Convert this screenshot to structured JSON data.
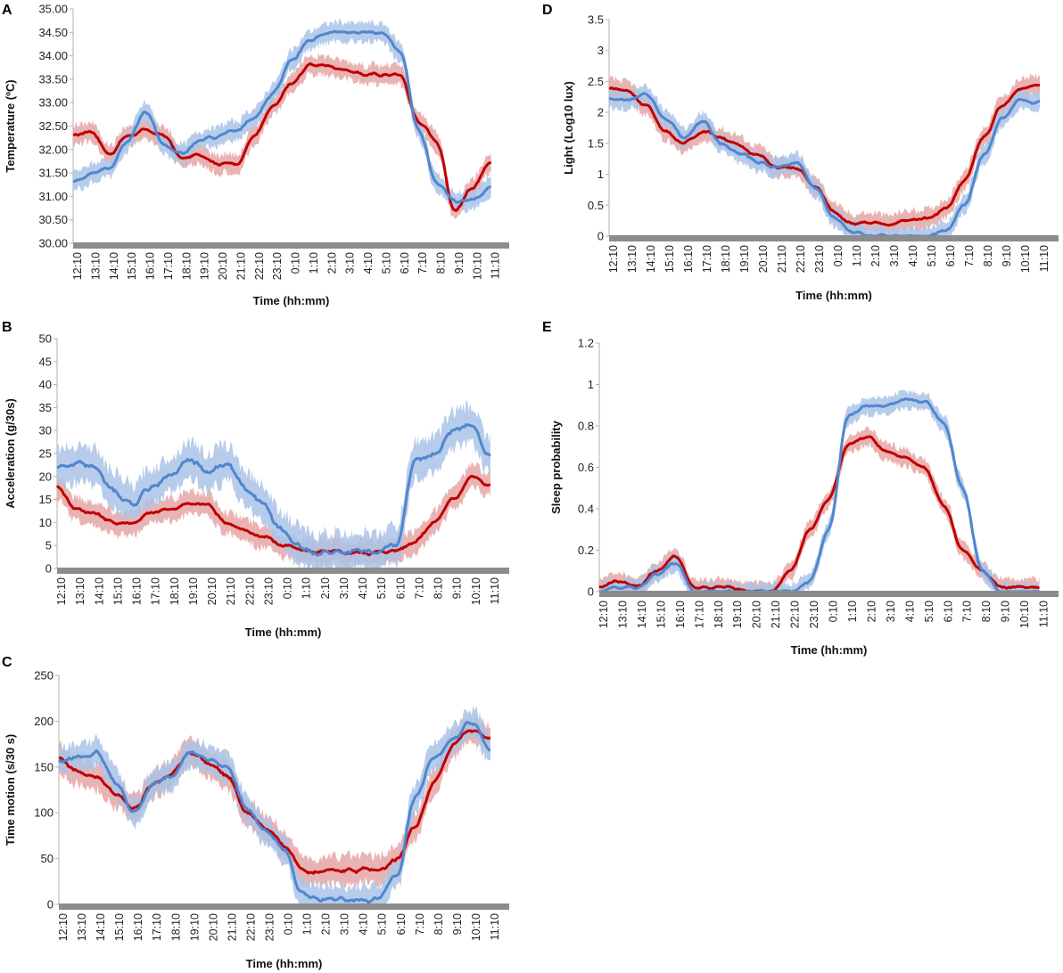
{
  "figure": {
    "colors": {
      "red": "#c00000",
      "red_band": "#e6a6a6",
      "blue": "#4f86cf",
      "blue_band": "#a9c3e6",
      "axis": "#8c8c8c"
    }
  },
  "chart_data": [
    {
      "id": "A",
      "type": "line",
      "panel_label": "A",
      "ylabel": "Temperature (ºC)",
      "xlabel": "Time (hh:mm)",
      "ylim": [
        30.0,
        35.0
      ],
      "yticks": [
        "30.00",
        "30.50",
        "31.00",
        "31.50",
        "32.00",
        "32.50",
        "33.00",
        "33.50",
        "34.00",
        "34.50",
        "35.00"
      ],
      "categories": [
        "12:10",
        "13:10",
        "14:10",
        "15:10",
        "16:10",
        "17:10",
        "18:10",
        "19:10",
        "20:10",
        "21:10",
        "22:10",
        "23:10",
        "0:10",
        "1:10",
        "2:10",
        "3:10",
        "4:10",
        "5:10",
        "6:10",
        "7:10",
        "8:10",
        "9:10",
        "10:10",
        "11:10"
      ],
      "series": [
        {
          "name": "red",
          "values": [
            32.3,
            32.4,
            31.9,
            32.3,
            32.4,
            32.3,
            31.8,
            31.9,
            31.7,
            31.7,
            32.3,
            32.9,
            33.4,
            33.8,
            33.8,
            33.7,
            33.6,
            33.6,
            33.6,
            32.6,
            32.2,
            30.7,
            31.2,
            31.7
          ],
          "band": 0.2
        },
        {
          "name": "blue",
          "values": [
            31.3,
            31.5,
            31.6,
            32.2,
            32.8,
            32.1,
            31.9,
            32.2,
            32.3,
            32.4,
            32.7,
            33.2,
            33.9,
            34.3,
            34.5,
            34.5,
            34.5,
            34.5,
            34.1,
            32.4,
            31.3,
            30.9,
            30.9,
            31.2
          ],
          "band": 0.2
        }
      ]
    },
    {
      "id": "B",
      "type": "line",
      "panel_label": "B",
      "ylabel": "Acceleration (g/30s)",
      "xlabel": "Time (hh:mm)",
      "ylim": [
        0,
        50
      ],
      "yticks": [
        "0",
        "5",
        "10",
        "15",
        "20",
        "25",
        "30",
        "35",
        "40",
        "45",
        "50"
      ],
      "categories": [
        "12:10",
        "13:10",
        "14:10",
        "15:10",
        "16:10",
        "17:10",
        "18:10",
        "19:10",
        "20:10",
        "21:10",
        "22:10",
        "23:10",
        "0:10",
        "1:10",
        "2:10",
        "3:10",
        "4:10",
        "5:10",
        "6:10",
        "7:10",
        "8:10",
        "9:10",
        "10:10",
        "11:10"
      ],
      "series": [
        {
          "name": "red",
          "values": [
            18,
            13,
            12,
            10,
            10,
            12,
            13,
            14,
            14,
            10,
            8,
            7,
            5,
            4,
            3.5,
            3.5,
            3.5,
            3.5,
            4,
            6,
            10,
            15,
            20,
            18
          ],
          "band": 2.5
        },
        {
          "name": "blue",
          "values": [
            22,
            23,
            22,
            17,
            14,
            18,
            20,
            24,
            21,
            23,
            17,
            14,
            8,
            4,
            3.5,
            3.5,
            3.5,
            3.5,
            5,
            24,
            25,
            30,
            31,
            24
          ],
          "band": 4
        }
      ]
    },
    {
      "id": "C",
      "type": "line",
      "panel_label": "C",
      "ylabel": "Time motion (s/30 s)",
      "xlabel": "Time (hh:mm)",
      "ylim": [
        0,
        250
      ],
      "yticks": [
        "0",
        "50",
        "100",
        "150",
        "200",
        "250"
      ],
      "categories": [
        "12:10",
        "13:10",
        "14:10",
        "15:10",
        "16:10",
        "17:10",
        "18:10",
        "19:10",
        "20:10",
        "21:10",
        "22:10",
        "23:10",
        "0:10",
        "1:10",
        "2:10",
        "3:10",
        "4:10",
        "5:10",
        "6:10",
        "7:10",
        "8:10",
        "9:10",
        "10:10",
        "11:10"
      ],
      "series": [
        {
          "name": "red",
          "values": [
            160,
            145,
            140,
            120,
            105,
            130,
            145,
            165,
            155,
            140,
            100,
            85,
            65,
            35,
            35,
            38,
            38,
            38,
            48,
            85,
            135,
            175,
            190,
            180
          ],
          "band": 15
        },
        {
          "name": "blue",
          "values": [
            155,
            160,
            165,
            135,
            100,
            130,
            140,
            165,
            160,
            150,
            105,
            80,
            60,
            10,
            5,
            5,
            5,
            5,
            30,
            120,
            160,
            180,
            200,
            165
          ],
          "band": 15
        }
      ]
    },
    {
      "id": "D",
      "type": "line",
      "panel_label": "D",
      "ylabel": "Light (Log10 lux)",
      "xlabel": "Time (hh:mm)",
      "ylim": [
        0,
        3.5
      ],
      "yticks": [
        "0",
        "0.5",
        "1",
        "1.5",
        "2",
        "2.5",
        "3",
        "3.5"
      ],
      "categories": [
        "12:10",
        "13:10",
        "14:10",
        "15:10",
        "16:10",
        "17:10",
        "18:10",
        "19:10",
        "20:10",
        "21:10",
        "22:10",
        "23:10",
        "0:10",
        "1:10",
        "2:10",
        "3:10",
        "4:10",
        "5:10",
        "6:10",
        "7:10",
        "8:10",
        "9:10",
        "10:10",
        "11:10"
      ],
      "series": [
        {
          "name": "red",
          "values": [
            2.4,
            2.35,
            2.1,
            1.7,
            1.5,
            1.7,
            1.6,
            1.45,
            1.3,
            1.1,
            1.1,
            0.8,
            0.4,
            0.2,
            0.2,
            0.2,
            0.25,
            0.3,
            0.45,
            0.9,
            1.6,
            2.1,
            2.4,
            2.45
          ],
          "band": 0.15
        },
        {
          "name": "blue",
          "values": [
            2.2,
            2.2,
            2.3,
            1.9,
            1.6,
            1.85,
            1.5,
            1.35,
            1.2,
            1.1,
            1.2,
            0.8,
            0.3,
            0.05,
            0,
            0,
            0,
            0,
            0.1,
            0.5,
            1.3,
            1.9,
            2.2,
            2.15
          ],
          "band": 0.15
        }
      ]
    },
    {
      "id": "E",
      "type": "line",
      "panel_label": "E",
      "ylabel": "Sleep probability",
      "xlabel": "Time (hh:mm)",
      "ylim": [
        0,
        1.2
      ],
      "yticks": [
        "0",
        "0.2",
        "0.4",
        "0.6",
        "0.8",
        "1",
        "1.2"
      ],
      "categories": [
        "12:10",
        "13:10",
        "14:10",
        "15:10",
        "16:10",
        "17:10",
        "18:10",
        "19:10",
        "20:10",
        "21:10",
        "22:10",
        "23:10",
        "0:10",
        "1:10",
        "2:10",
        "3:10",
        "4:10",
        "5:10",
        "6:10",
        "7:10",
        "8:10",
        "9:10",
        "10:10",
        "11:10"
      ],
      "series": [
        {
          "name": "red",
          "values": [
            0.02,
            0.05,
            0.03,
            0.1,
            0.17,
            0.02,
            0.02,
            0.02,
            0.0,
            0.0,
            0.1,
            0.3,
            0.45,
            0.7,
            0.75,
            0.68,
            0.65,
            0.6,
            0.42,
            0.2,
            0.1,
            0.02,
            0.02,
            0.02
          ],
          "band": 0.04
        },
        {
          "name": "blue",
          "values": [
            0.0,
            0.02,
            0.02,
            0.08,
            0.14,
            0.0,
            0.0,
            0.0,
            0.0,
            0.0,
            0.0,
            0.05,
            0.3,
            0.85,
            0.9,
            0.9,
            0.92,
            0.92,
            0.82,
            0.5,
            0.1,
            0.0,
            0.0,
            0.0
          ],
          "band": 0.04
        }
      ]
    }
  ]
}
